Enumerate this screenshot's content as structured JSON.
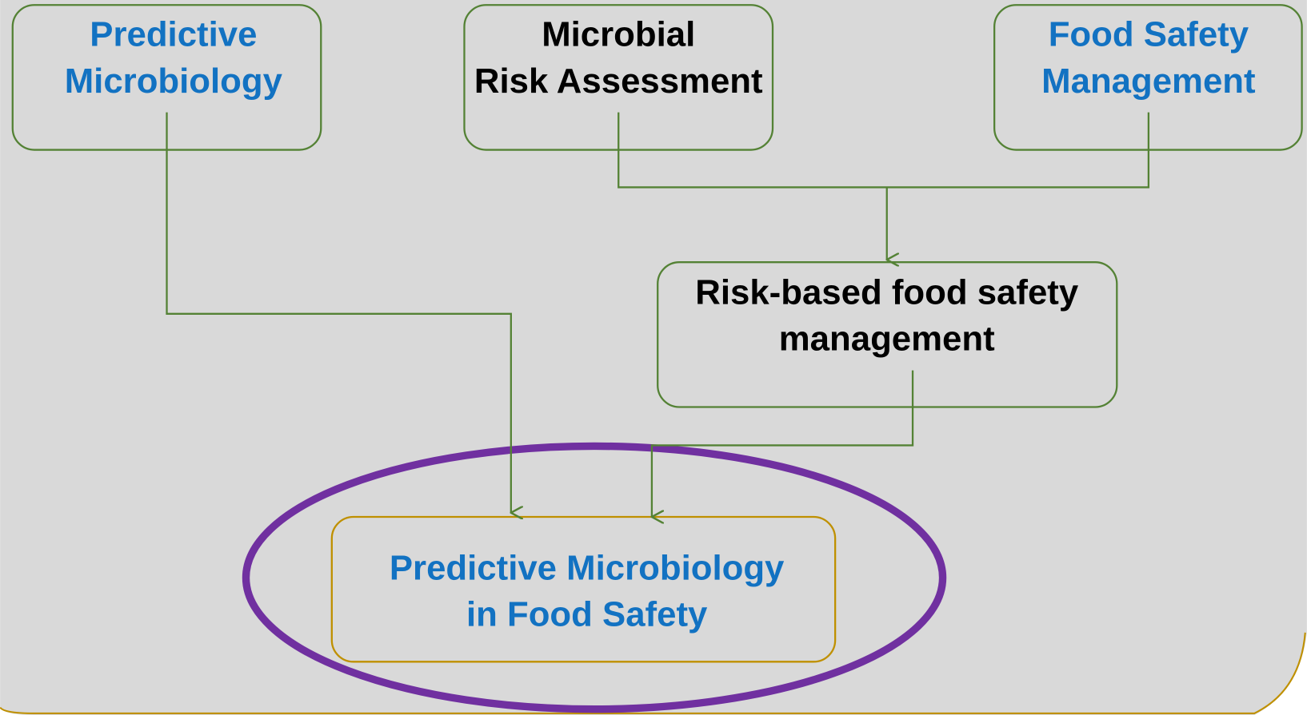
{
  "nodes": [
    {
      "lines": [
        "Predictive",
        "Microbiology"
      ]
    },
    {
      "lines": [
        "Microbial",
        "Risk Assessment"
      ]
    },
    {
      "lines": [
        "Food Safety",
        "Management"
      ]
    },
    {
      "lines": [
        "Risk-based food safety",
        "management"
      ]
    },
    {
      "lines": [
        "Predictive Microbiology",
        "in Food Safety"
      ]
    }
  ]
}
